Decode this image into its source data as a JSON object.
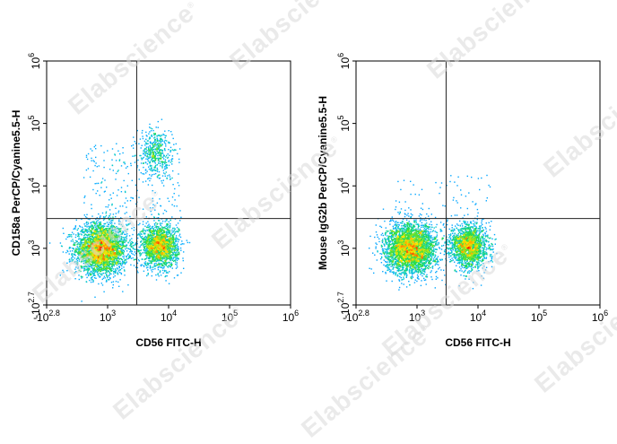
{
  "watermark": "Elabscience",
  "chart_data": [
    {
      "type": "scatter",
      "title": "",
      "xlabel": "CD56 FITC-H",
      "ylabel": "CD158a PerCP/Cyanine5.5-H",
      "x_scale": "biexponential",
      "y_scale": "biexponential",
      "xlim": [
        "-10^2.8",
        "10^6"
      ],
      "ylim": [
        "-10^2.7",
        "10^6"
      ],
      "x_ticks": [
        {
          "base": "-10",
          "exp": "2.8"
        },
        {
          "base": "10",
          "exp": "3"
        },
        {
          "base": "10",
          "exp": "4"
        },
        {
          "base": "10",
          "exp": "5"
        },
        {
          "base": "10",
          "exp": "6"
        }
      ],
      "y_ticks": [
        {
          "base": "-10",
          "exp": "2.7"
        },
        {
          "base": "10",
          "exp": "3"
        },
        {
          "base": "10",
          "exp": "4"
        },
        {
          "base": "10",
          "exp": "5"
        },
        {
          "base": "10",
          "exp": "6"
        }
      ],
      "quadrant_gate": {
        "x": 3000,
        "y": 3000
      },
      "colormap": [
        "#1a1aff",
        "#00c0ff",
        "#22dd44",
        "#ffe600",
        "#ff2000"
      ],
      "populations": [
        {
          "x_center": 800,
          "y_center": 1000,
          "relative_density": "high"
        },
        {
          "x_center": 7000,
          "y_center": 1100,
          "relative_density": "medium"
        },
        {
          "x_center": 6000,
          "y_center": 35000,
          "relative_density": "low"
        }
      ]
    },
    {
      "type": "scatter",
      "title": "",
      "xlabel": "CD56 FITC-H",
      "ylabel": "Mouse IgG2b PerCP/Cyanine5.5-H",
      "x_scale": "biexponential",
      "y_scale": "biexponential",
      "xlim": [
        "-10^2.8",
        "10^6"
      ],
      "ylim": [
        "-10^2.7",
        "10^6"
      ],
      "x_ticks": [
        {
          "base": "-10",
          "exp": "2.8"
        },
        {
          "base": "10",
          "exp": "3"
        },
        {
          "base": "10",
          "exp": "4"
        },
        {
          "base": "10",
          "exp": "5"
        },
        {
          "base": "10",
          "exp": "6"
        }
      ],
      "y_ticks": [
        {
          "base": "-10",
          "exp": "2.7"
        },
        {
          "base": "10",
          "exp": "3"
        },
        {
          "base": "10",
          "exp": "4"
        },
        {
          "base": "10",
          "exp": "5"
        },
        {
          "base": "10",
          "exp": "6"
        }
      ],
      "quadrant_gate": {
        "x": 3000,
        "y": 3000
      },
      "colormap": [
        "#1a1aff",
        "#00c0ff",
        "#22dd44",
        "#ffe600",
        "#ff2000"
      ],
      "populations": [
        {
          "x_center": 800,
          "y_center": 1000,
          "relative_density": "high"
        },
        {
          "x_center": 7000,
          "y_center": 1100,
          "relative_density": "medium"
        }
      ]
    }
  ]
}
